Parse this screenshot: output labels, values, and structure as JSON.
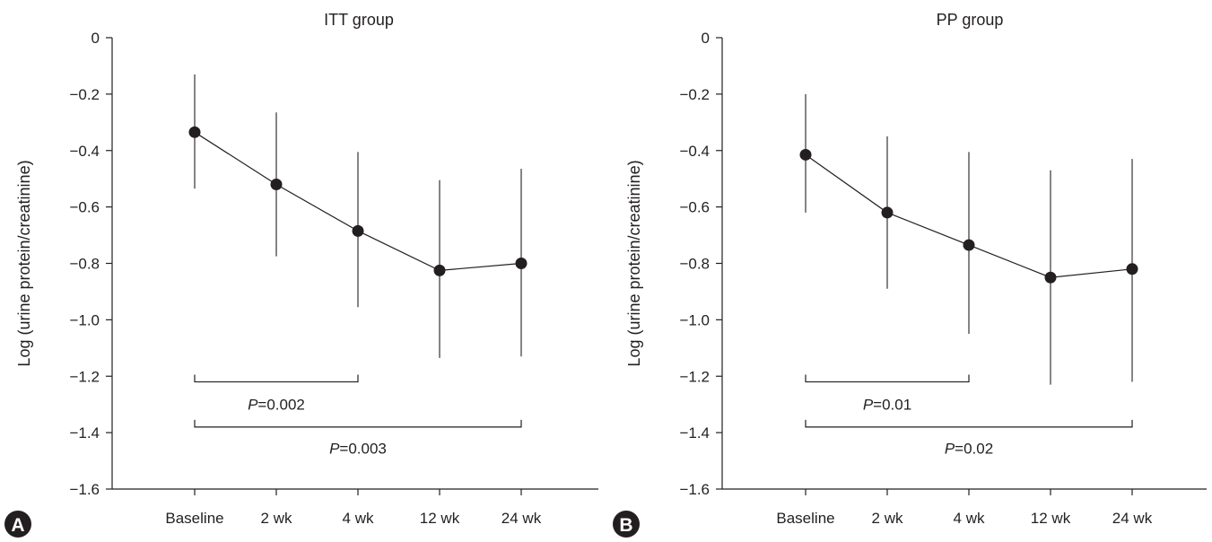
{
  "chart_data": [
    {
      "type": "line",
      "panel": "A",
      "title": "ITT group",
      "xlabel": "",
      "ylabel": "Log (urine protein/creatinine)",
      "categories": [
        "Baseline",
        "2 wk",
        "4 wk",
        "12 wk",
        "24 wk"
      ],
      "ylim": [
        -1.6,
        0
      ],
      "yticks": [
        "0",
        "−0.2",
        "−0.4",
        "−0.6",
        "−0.8",
        "−1.0",
        "−1.2",
        "−1.4",
        "−1.6"
      ],
      "ytick_values": [
        0,
        -0.2,
        -0.4,
        -0.6,
        -0.8,
        -1.0,
        -1.2,
        -1.4,
        -1.6
      ],
      "series": [
        {
          "values": [
            -0.335,
            -0.52,
            -0.685,
            -0.825,
            -0.8
          ],
          "err_upper": [
            -0.13,
            -0.265,
            -0.405,
            -0.505,
            -0.465
          ],
          "err_lower": [
            -0.535,
            -0.775,
            -0.955,
            -1.135,
            -1.13
          ]
        }
      ],
      "annotations": [
        {
          "label_prefix": "P",
          "label_value": "=0.002",
          "from": 0,
          "to": 2,
          "y": -1.22,
          "text_y": -1.3
        },
        {
          "label_prefix": "P",
          "label_value": "=0.003",
          "from": 0,
          "to": 4,
          "y": -1.38,
          "text_y": -1.455
        }
      ],
      "badge": "A",
      "color": "#231f20"
    },
    {
      "type": "line",
      "panel": "B",
      "title": "PP group",
      "xlabel": "",
      "ylabel": "Log (urine protein/creatinine)",
      "categories": [
        "Baseline",
        "2 wk",
        "4 wk",
        "12 wk",
        "24 wk"
      ],
      "ylim": [
        -1.6,
        0
      ],
      "yticks": [
        "0",
        "−0.2",
        "−0.4",
        "−0.6",
        "−0.8",
        "−1.0",
        "−1.2",
        "−1.4",
        "−1.6"
      ],
      "ytick_values": [
        0,
        -0.2,
        -0.4,
        -0.6,
        -0.8,
        -1.0,
        -1.2,
        -1.4,
        -1.6
      ],
      "series": [
        {
          "values": [
            -0.415,
            -0.62,
            -0.735,
            -0.85,
            -0.82
          ],
          "err_upper": [
            -0.2,
            -0.35,
            -0.405,
            -0.47,
            -0.43
          ],
          "err_lower": [
            -0.62,
            -0.89,
            -1.05,
            -1.23,
            -1.22
          ]
        }
      ],
      "annotations": [
        {
          "label_prefix": "P",
          "label_value": "=0.01",
          "from": 0,
          "to": 2,
          "y": -1.22,
          "text_y": -1.3
        },
        {
          "label_prefix": "P",
          "label_value": "=0.02",
          "from": 0,
          "to": 4,
          "y": -1.38,
          "text_y": -1.455
        }
      ],
      "badge": "B",
      "color": "#231f20"
    }
  ]
}
